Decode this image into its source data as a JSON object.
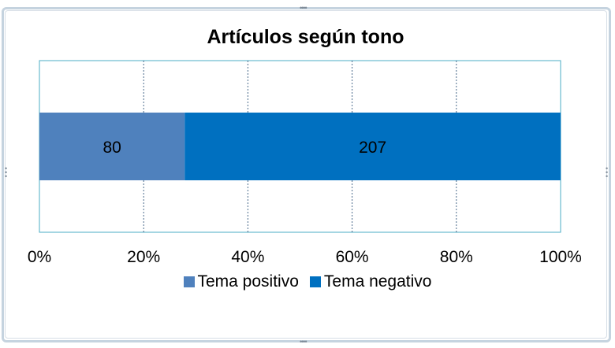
{
  "chart_data": {
    "type": "bar",
    "orientation": "horizontal",
    "stacked": "percent",
    "title": "Artículos según tono",
    "categories": [
      ""
    ],
    "series": [
      {
        "name": "Tema positivo",
        "values": [
          80
        ],
        "color": "#4f81bd"
      },
      {
        "name": "Tema negativo",
        "values": [
          207
        ],
        "color": "#0070c0"
      }
    ],
    "xlim": [
      0,
      100
    ],
    "x_ticks": [
      "0%",
      "20%",
      "40%",
      "60%",
      "80%",
      "100%"
    ],
    "grid": "vertical-dashed",
    "legend": "bottom",
    "data_labels": true
  }
}
